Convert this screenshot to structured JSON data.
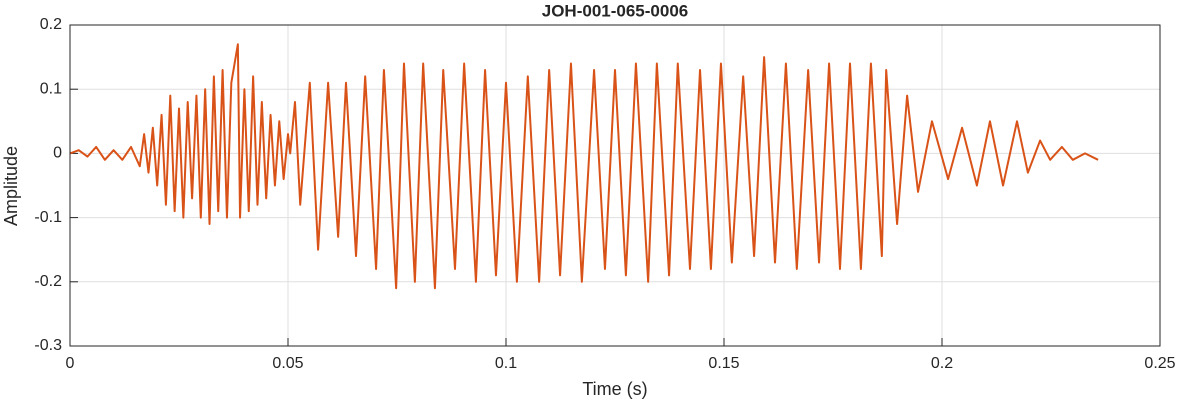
{
  "chart_data": {
    "type": "line",
    "title": "JOH-001-065-0006",
    "x_label": "Time (s)",
    "y_label": "Amplitude",
    "xlim": [
      0,
      0.25
    ],
    "xticks": [
      0,
      0.05,
      0.1,
      0.15,
      0.2,
      0.25
    ],
    "ylim": [
      -0.3,
      0.2
    ],
    "yticks": [
      -0.3,
      -0.2,
      -0.1,
      0,
      0.1,
      0.2
    ],
    "grid": true,
    "series": [
      {
        "color": "#d95319",
        "x": [
          0,
          0.002,
          0.004,
          0.006,
          0.008,
          0.01,
          0.012,
          0.014,
          0.016,
          0.017,
          0.018,
          0.019,
          0.02,
          0.021,
          0.022,
          0.023,
          0.024,
          0.025,
          0.026,
          0.027,
          0.028,
          0.029,
          0.03,
          0.031,
          0.032,
          0.033,
          0.034,
          0.035,
          0.036,
          0.037,
          0.0385,
          0.039,
          0.04,
          0.041,
          0.042,
          0.043,
          0.044,
          0.045,
          0.046,
          0.047,
          0.048,
          0.049,
          0.05,
          0.0505,
          0.0516,
          0.0528,
          0.055,
          0.0569,
          0.0592,
          0.0615,
          0.0633,
          0.0656,
          0.0677,
          0.0702,
          0.072,
          0.0748,
          0.0766,
          0.0791,
          0.081,
          0.0837,
          0.0856,
          0.0883,
          0.0904,
          0.0931,
          0.0952,
          0.0977,
          0.1,
          0.1025,
          0.105,
          0.1076,
          0.1099,
          0.1124,
          0.1149,
          0.1174,
          0.1202,
          0.1227,
          0.125,
          0.1275,
          0.1298,
          0.1326,
          0.1346,
          0.1374,
          0.1394,
          0.1422,
          0.1445,
          0.147,
          0.1493,
          0.1518,
          0.1544,
          0.1569,
          0.1592,
          0.1617,
          0.1642,
          0.1667,
          0.1693,
          0.1718,
          0.1741,
          0.1766,
          0.1789,
          0.1814,
          0.1837,
          0.1862,
          0.1872,
          0.1897,
          0.192,
          0.1945,
          0.1977,
          0.2014,
          0.2046,
          0.208,
          0.211,
          0.214,
          0.2172,
          0.2197,
          0.2225,
          0.2248,
          0.2275,
          0.23,
          0.2328,
          0.2358
        ],
        "values": [
          0,
          0.005,
          -0.005,
          0.01,
          -0.01,
          0.005,
          -0.01,
          0.01,
          -0.02,
          0.03,
          -0.03,
          0.04,
          -0.05,
          0.06,
          -0.08,
          0.09,
          -0.09,
          0.07,
          -0.1,
          0.08,
          -0.07,
          0.09,
          -0.1,
          0.1,
          -0.11,
          0.12,
          -0.09,
          0.13,
          -0.1,
          0.11,
          0.17,
          -0.1,
          0.1,
          -0.09,
          0.12,
          -0.08,
          0.08,
          -0.07,
          0.06,
          -0.05,
          0.05,
          -0.04,
          0.03,
          0,
          0.08,
          -0.08,
          0.11,
          -0.15,
          0.11,
          -0.13,
          0.11,
          -0.16,
          0.12,
          -0.18,
          0.13,
          -0.21,
          0.14,
          -0.2,
          0.14,
          -0.21,
          0.13,
          -0.18,
          0.14,
          -0.2,
          0.13,
          -0.19,
          0.11,
          -0.2,
          0.12,
          -0.2,
          0.13,
          -0.19,
          0.14,
          -0.2,
          0.13,
          -0.18,
          0.13,
          -0.19,
          0.14,
          -0.2,
          0.14,
          -0.19,
          0.14,
          -0.18,
          0.13,
          -0.18,
          0.14,
          -0.17,
          0.12,
          -0.16,
          0.15,
          -0.17,
          0.14,
          -0.18,
          0.13,
          -0.17,
          0.14,
          -0.18,
          0.14,
          -0.18,
          0.14,
          -0.16,
          0.13,
          -0.11,
          0.09,
          -0.06,
          0.05,
          -0.04,
          0.04,
          -0.05,
          0.05,
          -0.05,
          0.05,
          -0.03,
          0.02,
          -0.01,
          0.01,
          -0.01,
          0,
          -0.01
        ]
      }
    ]
  }
}
